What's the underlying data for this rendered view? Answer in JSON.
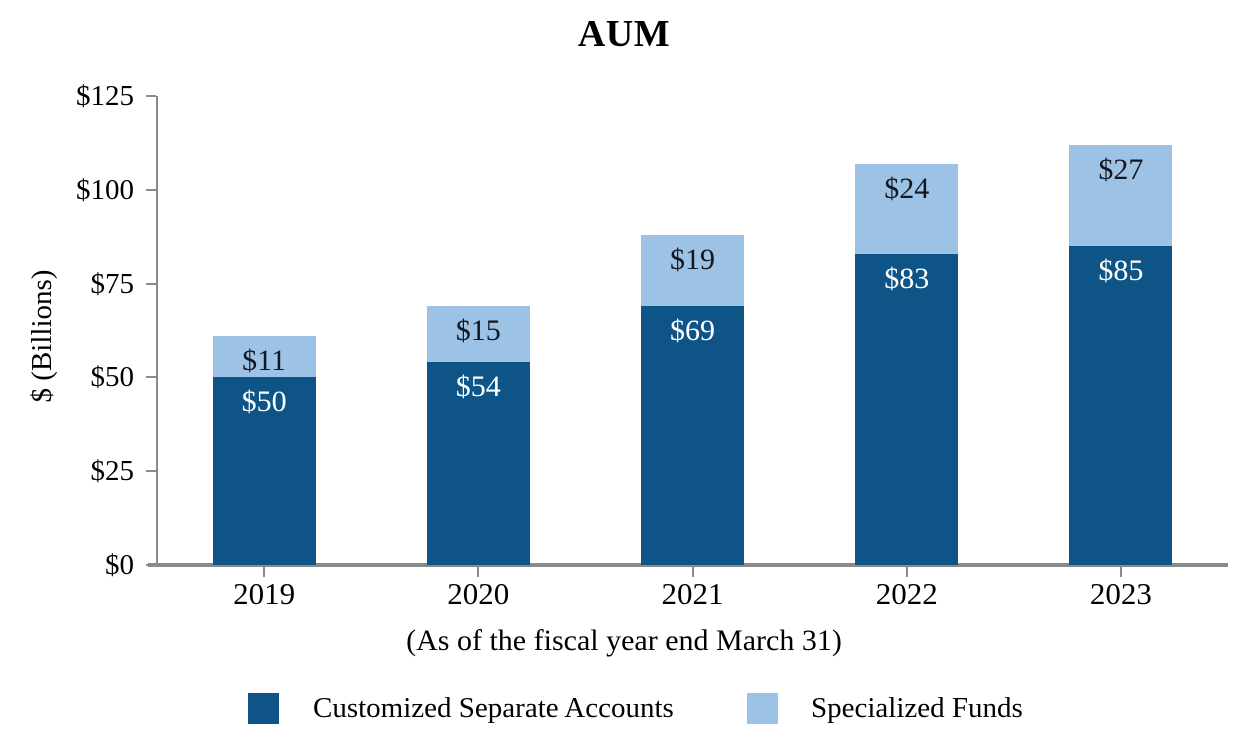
{
  "title": "AUM",
  "chart_data": {
    "type": "bar",
    "stacked": true,
    "title": "AUM",
    "xlabel": "(As of the fiscal year end March 31)",
    "ylabel": "$ (Billions)",
    "categories": [
      "2019",
      "2020",
      "2021",
      "2022",
      "2023"
    ],
    "series": [
      {
        "name": "Customized Separate Accounts",
        "color": "#0E5486",
        "label_color": "#FFFFFF",
        "values": [
          50,
          54,
          69,
          83,
          85
        ],
        "data_labels": [
          "$50",
          "$54",
          "$69",
          "$83",
          "$85"
        ]
      },
      {
        "name": "Specialized Funds",
        "color": "#9CC3E6",
        "label_color": "#16161E",
        "values": [
          11,
          15,
          19,
          24,
          27
        ],
        "data_labels": [
          "$11",
          "$15",
          "$19",
          "$24",
          "$27"
        ]
      }
    ],
    "totals": [
      61,
      69,
      88,
      107,
      112
    ],
    "ylim": [
      0,
      125
    ],
    "y_ticks": [
      {
        "value": 125,
        "label": "$125"
      },
      {
        "value": 100,
        "label": "$100"
      },
      {
        "value": 75,
        "label": "$75"
      },
      {
        "value": 50,
        "label": "$50"
      },
      {
        "value": 25,
        "label": "$25"
      },
      {
        "value": 0,
        "label": "$0"
      }
    ],
    "grid": false,
    "legend_position": "bottom"
  },
  "legend": {
    "items": [
      {
        "label": "Customized Separate Accounts",
        "color": "#0E5486"
      },
      {
        "label": "Specialized Funds",
        "color": "#9CC3E6"
      }
    ]
  },
  "colors": {
    "axis": "#8A8A8A",
    "background": "#FFFFFF"
  }
}
